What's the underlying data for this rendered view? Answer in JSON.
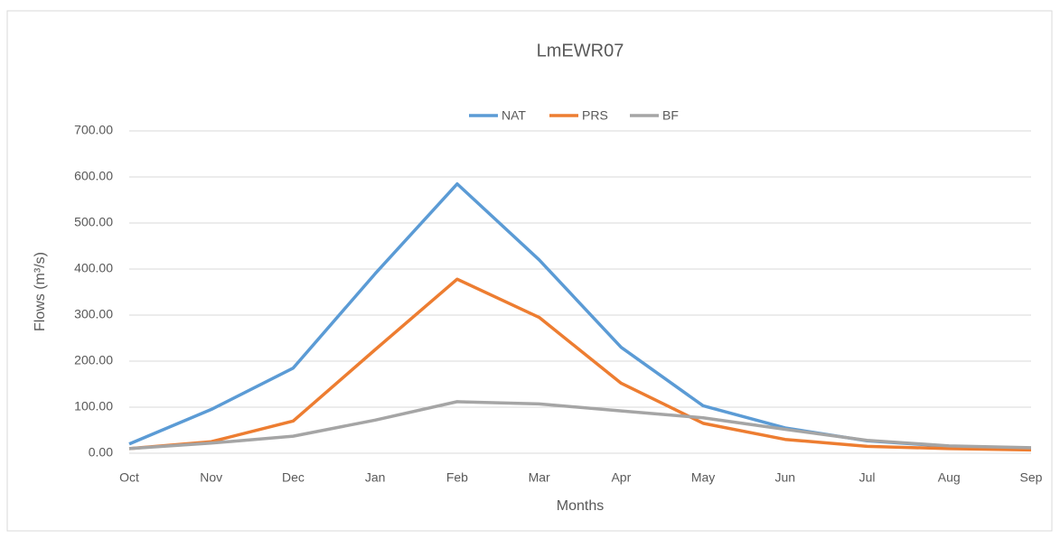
{
  "chart_data": {
    "type": "line",
    "title": "LmEWR07",
    "x_label": "Months",
    "y_label": "Flows (m³/s)",
    "categories": [
      "Oct",
      "Nov",
      "Dec",
      "Jan",
      "Feb",
      "Mar",
      "Apr",
      "May",
      "Jun",
      "Jul",
      "Aug",
      "Sep"
    ],
    "series": [
      {
        "name": "NAT",
        "color": "#5b9bd5",
        "values": [
          20,
          95,
          185,
          390,
          585,
          420,
          230,
          103,
          55,
          27,
          15,
          10
        ]
      },
      {
        "name": "PRS",
        "color": "#ed7d31",
        "values": [
          10,
          25,
          70,
          225,
          378,
          295,
          152,
          65,
          30,
          15,
          10,
          7
        ]
      },
      {
        "name": "BF",
        "color": "#a5a5a5",
        "values": [
          10,
          22,
          37,
          72,
          112,
          107,
          92,
          77,
          52,
          28,
          16,
          12
        ]
      }
    ],
    "ylim": [
      0,
      700
    ],
    "yticks": [
      {
        "value": 0,
        "label": "0.00"
      },
      {
        "value": 100,
        "label": "100.00"
      },
      {
        "value": 200,
        "label": "200.00"
      },
      {
        "value": 300,
        "label": "300.00"
      },
      {
        "value": 400,
        "label": "400.00"
      },
      {
        "value": 500,
        "label": "500.00"
      },
      {
        "value": 600,
        "label": "600.00"
      },
      {
        "value": 700,
        "label": "700.00"
      }
    ],
    "grid": true,
    "legend": "top"
  }
}
